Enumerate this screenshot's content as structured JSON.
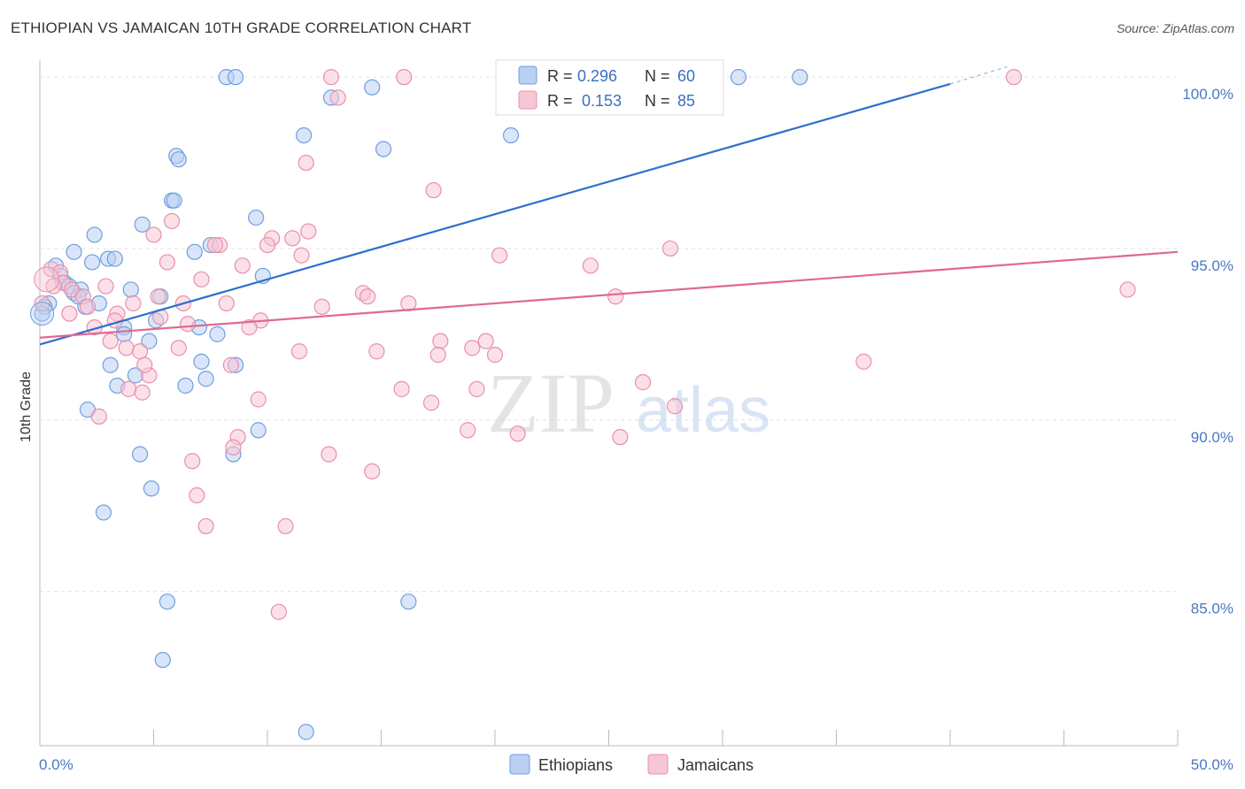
{
  "title": "ETHIOPIAN VS JAMAICAN 10TH GRADE CORRELATION CHART",
  "source": "Source: ZipAtlas.com",
  "watermark": {
    "zip": "ZIP",
    "atlas": "atlas"
  },
  "legend": {
    "r_label": "R =",
    "n_label": "N =",
    "rows": [
      {
        "r": "0.296",
        "n": "60"
      },
      {
        "r": "0.153",
        "n": "85"
      }
    ]
  },
  "chart_data": {
    "type": "scatter",
    "title": "ETHIOPIAN VS JAMAICAN 10TH GRADE CORRELATION CHART",
    "xlabel": "",
    "ylabel": "10th Grade",
    "xlim": [
      0,
      50
    ],
    "ylim": [
      80.5,
      100.7
    ],
    "x_tick_labels": [
      "0.0%",
      "50.0%"
    ],
    "y_ticks": [
      100,
      95,
      90,
      85
    ],
    "y_tick_labels": [
      "100.0%",
      "95.0%",
      "90.0%",
      "85.0%"
    ],
    "grid": true,
    "legend_position": "top-center",
    "series": [
      {
        "name": "Ethiopians",
        "color": "#6f9fe0",
        "fill": "#b9d0f2",
        "trend": {
          "x1": 0,
          "y1": 92.2,
          "x2": 40,
          "y2": 99.8,
          "dash_to": 42.5,
          "dash_y": 100.3,
          "color": "#2e6fcc"
        },
        "points": [
          [
            8.2,
            100
          ],
          [
            8.6,
            100
          ],
          [
            14.6,
            99.7
          ],
          [
            12.8,
            99.4
          ],
          [
            30.7,
            100
          ],
          [
            33.4,
            100
          ],
          [
            11.6,
            98.3
          ],
          [
            20.7,
            98.3
          ],
          [
            15.1,
            97.9
          ],
          [
            6.0,
            97.7
          ],
          [
            6.1,
            97.6
          ],
          [
            5.8,
            96.4
          ],
          [
            5.9,
            96.4
          ],
          [
            9.5,
            95.9
          ],
          [
            4.5,
            95.7
          ],
          [
            2.4,
            95.4
          ],
          [
            7.5,
            95.1
          ],
          [
            6.8,
            94.9
          ],
          [
            1.5,
            94.9
          ],
          [
            3.0,
            94.7
          ],
          [
            3.3,
            94.7
          ],
          [
            0.7,
            94.5
          ],
          [
            2.3,
            94.6
          ],
          [
            9.8,
            94.2
          ],
          [
            0.9,
            94.2
          ],
          [
            1.1,
            94.0
          ],
          [
            1.3,
            93.9
          ],
          [
            1.8,
            93.8
          ],
          [
            4.0,
            93.8
          ],
          [
            1.5,
            93.7
          ],
          [
            1.7,
            93.6
          ],
          [
            0.4,
            93.4
          ],
          [
            2.6,
            93.4
          ],
          [
            2.0,
            93.3
          ],
          [
            5.3,
            93.6
          ],
          [
            0.2,
            93.3
          ],
          [
            0.1,
            93.1
          ],
          [
            3.7,
            92.7
          ],
          [
            5.1,
            92.9
          ],
          [
            7.0,
            92.7
          ],
          [
            3.7,
            92.5
          ],
          [
            4.8,
            92.3
          ],
          [
            7.8,
            92.5
          ],
          [
            3.1,
            91.6
          ],
          [
            7.1,
            91.7
          ],
          [
            8.6,
            91.6
          ],
          [
            4.2,
            91.3
          ],
          [
            7.3,
            91.2
          ],
          [
            6.4,
            91.0
          ],
          [
            3.4,
            91.0
          ],
          [
            2.1,
            90.3
          ],
          [
            9.6,
            89.7
          ],
          [
            8.5,
            89.0
          ],
          [
            4.4,
            89.0
          ],
          [
            4.9,
            88.0
          ],
          [
            2.8,
            87.3
          ],
          [
            5.6,
            84.7
          ],
          [
            16.2,
            84.7
          ],
          [
            5.4,
            83.0
          ],
          [
            11.7,
            80.9
          ]
        ]
      },
      {
        "name": "Jamaicans",
        "color": "#e890ab",
        "fill": "#f7c6d5",
        "trend": {
          "x1": 0,
          "y1": 92.4,
          "x2": 50,
          "y2": 94.9,
          "color": "#e0688f"
        },
        "points": [
          [
            12.8,
            100
          ],
          [
            16.0,
            100
          ],
          [
            26.8,
            100
          ],
          [
            42.8,
            100
          ],
          [
            13.1,
            99.4
          ],
          [
            11.7,
            97.5
          ],
          [
            17.3,
            96.7
          ],
          [
            5.8,
            95.8
          ],
          [
            5.0,
            95.4
          ],
          [
            11.8,
            95.5
          ],
          [
            10.2,
            95.3
          ],
          [
            11.1,
            95.3
          ],
          [
            10.0,
            95.1
          ],
          [
            7.9,
            95.1
          ],
          [
            7.7,
            95.1
          ],
          [
            27.7,
            95.0
          ],
          [
            20.2,
            94.8
          ],
          [
            11.5,
            94.8
          ],
          [
            5.6,
            94.6
          ],
          [
            24.2,
            94.5
          ],
          [
            8.9,
            94.5
          ],
          [
            0.5,
            94.4
          ],
          [
            0.9,
            94.3
          ],
          [
            1.0,
            94.0
          ],
          [
            7.1,
            94.1
          ],
          [
            0.6,
            93.9
          ],
          [
            2.9,
            93.9
          ],
          [
            1.4,
            93.8
          ],
          [
            47.8,
            93.8
          ],
          [
            14.2,
            93.7
          ],
          [
            1.9,
            93.6
          ],
          [
            14.4,
            93.6
          ],
          [
            5.2,
            93.6
          ],
          [
            25.3,
            93.6
          ],
          [
            0.1,
            93.4
          ],
          [
            4.1,
            93.4
          ],
          [
            6.3,
            93.4
          ],
          [
            8.2,
            93.4
          ],
          [
            16.2,
            93.4
          ],
          [
            12.4,
            93.3
          ],
          [
            2.1,
            93.3
          ],
          [
            3.4,
            93.1
          ],
          [
            1.3,
            93.1
          ],
          [
            5.3,
            93.0
          ],
          [
            3.3,
            92.9
          ],
          [
            9.7,
            92.9
          ],
          [
            6.5,
            92.8
          ],
          [
            2.4,
            92.7
          ],
          [
            9.2,
            92.7
          ],
          [
            3.1,
            92.3
          ],
          [
            17.6,
            92.3
          ],
          [
            19.6,
            92.3
          ],
          [
            3.8,
            92.1
          ],
          [
            19.0,
            92.1
          ],
          [
            6.1,
            92.1
          ],
          [
            11.4,
            92.0
          ],
          [
            14.8,
            92.0
          ],
          [
            4.4,
            92.0
          ],
          [
            17.5,
            91.9
          ],
          [
            20.0,
            91.9
          ],
          [
            36.2,
            91.7
          ],
          [
            8.4,
            91.6
          ],
          [
            4.8,
            91.3
          ],
          [
            26.5,
            91.1
          ],
          [
            19.2,
            90.9
          ],
          [
            15.9,
            90.9
          ],
          [
            3.9,
            90.9
          ],
          [
            4.5,
            90.8
          ],
          [
            9.6,
            90.6
          ],
          [
            17.2,
            90.5
          ],
          [
            27.9,
            90.4
          ],
          [
            2.6,
            90.1
          ],
          [
            18.8,
            89.7
          ],
          [
            21.0,
            89.6
          ],
          [
            25.5,
            89.5
          ],
          [
            8.7,
            89.5
          ],
          [
            8.5,
            89.2
          ],
          [
            12.7,
            89.0
          ],
          [
            6.7,
            88.8
          ],
          [
            14.6,
            88.5
          ],
          [
            6.9,
            87.8
          ],
          [
            7.3,
            86.9
          ],
          [
            10.8,
            86.9
          ],
          [
            10.5,
            84.4
          ],
          [
            4.6,
            91.6
          ]
        ]
      }
    ]
  },
  "bottom_legend": [
    "Ethiopians",
    "Jamaicans"
  ]
}
